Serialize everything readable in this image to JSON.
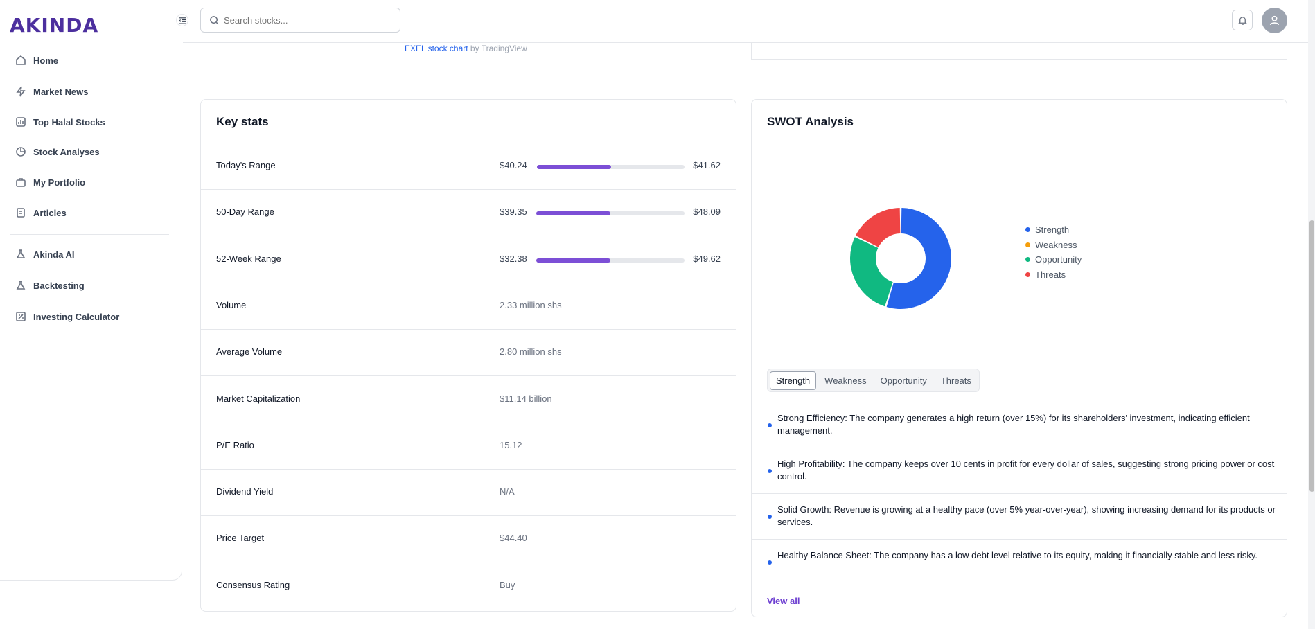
{
  "brand": {
    "logo_text": "AKINDA"
  },
  "sidebar": {
    "items": [
      {
        "label": "Home",
        "icon": "home-icon"
      },
      {
        "label": "Market News",
        "icon": "bolt-icon"
      },
      {
        "label": "Top Halal Stocks",
        "icon": "bar-chart-icon"
      },
      {
        "label": "Stock Analyses",
        "icon": "pie-chart-icon"
      },
      {
        "label": "My Portfolio",
        "icon": "briefcase-icon"
      },
      {
        "label": "Articles",
        "icon": "document-icon"
      },
      {
        "label": "Akinda AI",
        "icon": "flask-icon"
      },
      {
        "label": "Backtesting",
        "icon": "flask-icon"
      },
      {
        "label": "Investing Calculator",
        "icon": "calculator-icon"
      }
    ]
  },
  "header": {
    "search_placeholder": "Search stocks..."
  },
  "chart_credit": {
    "link_text": "EXEL stock chart",
    "suffix": " by TradingView"
  },
  "key_stats": {
    "title": "Key stats",
    "ranges": [
      {
        "label": "Today's Range",
        "low": "$40.24",
        "high": "$41.62",
        "position": 0.5
      },
      {
        "label": "50-Day Range",
        "low": "$39.35",
        "high": "$48.09",
        "position": 0.5
      },
      {
        "label": "52-Week Range",
        "low": "$32.38",
        "high": "$49.62",
        "position": 0.5
      }
    ],
    "rows": [
      {
        "label": "Volume",
        "value": "2.33 million shs"
      },
      {
        "label": "Average Volume",
        "value": "2.80 million shs"
      },
      {
        "label": "Market Capitalization",
        "value": "$11.14 billion"
      },
      {
        "label": "P/E Ratio",
        "value": "15.12"
      },
      {
        "label": "Dividend Yield",
        "value": "N/A"
      },
      {
        "label": "Price Target",
        "value": "$44.40"
      },
      {
        "label": "Consensus Rating",
        "value": "Buy"
      }
    ]
  },
  "swot": {
    "title": "SWOT Analysis",
    "legend": [
      {
        "label": "Strength",
        "color": "#2563eb"
      },
      {
        "label": "Weakness",
        "color": "#f59e0b"
      },
      {
        "label": "Opportunity",
        "color": "#10b981"
      },
      {
        "label": "Threats",
        "color": "#ef4444"
      }
    ],
    "tabs": [
      "Strength",
      "Weakness",
      "Opportunity",
      "Threats"
    ],
    "active_tab": "Strength",
    "items": [
      "Strong Efficiency: The company generates a high return (over 15%) for its shareholders' investment, indicating efficient management.",
      "High Profitability: The company keeps over 10 cents in profit for every dollar of sales, suggesting strong pricing power or cost control.",
      "Solid Growth: Revenue is growing at a healthy pace (over 5% year-over-year), showing increasing demand for its products or services.",
      "Healthy Balance Sheet: The company has a low debt level relative to its equity, making it financially stable and less risky."
    ],
    "view_all": "View all"
  },
  "chart_data": {
    "type": "pie",
    "categories": [
      "Strength",
      "Weakness",
      "Opportunity",
      "Threats"
    ],
    "values": [
      4,
      0,
      2,
      1.3
    ],
    "colors": [
      "#2563eb",
      "#f59e0b",
      "#10b981",
      "#ef4444"
    ]
  }
}
